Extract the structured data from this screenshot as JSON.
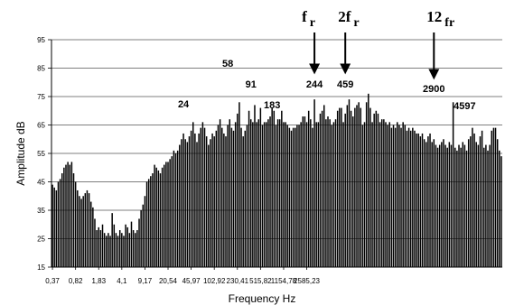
{
  "chart_data": {
    "type": "bar",
    "title": "",
    "xlabel": "Frequency  Hz",
    "ylabel": "Amplitude dB",
    "ylim": [
      15,
      95
    ],
    "y_ticks": [
      "95",
      "85",
      "75",
      "65",
      "55",
      "45",
      "35",
      "25",
      "15"
    ],
    "grid": true,
    "x_tick_labels": [
      {
        "label": "0,37",
        "bar_index": 0
      },
      {
        "label": "0,82",
        "bar_index": 12
      },
      {
        "label": "1,83",
        "bar_index": 24
      },
      {
        "label": "4,1",
        "bar_index": 36
      },
      {
        "label": "9,17",
        "bar_index": 48
      },
      {
        "label": "20,54",
        "bar_index": 60
      },
      {
        "label": "45,97",
        "bar_index": 72
      },
      {
        "label": "102,92",
        "bar_index": 84
      },
      {
        "label": "230,41",
        "bar_index": 96
      },
      {
        "label": "515,82",
        "bar_index": 108
      },
      {
        "label": "1154,78",
        "bar_index": 120
      },
      {
        "label": "2585,23",
        "bar_index": 132
      }
    ],
    "values": [
      44,
      43,
      42,
      45,
      46,
      48,
      50,
      51,
      52,
      51,
      52,
      48,
      45,
      42,
      40,
      39,
      40,
      41,
      42,
      41,
      38,
      36,
      32,
      28,
      29,
      28,
      30,
      27,
      26,
      27,
      26,
      34,
      30,
      27,
      26,
      28,
      27,
      26,
      30,
      29,
      27,
      31,
      28,
      27,
      28,
      32,
      35,
      37,
      40,
      45,
      46,
      47,
      48,
      51,
      50,
      49,
      48,
      50,
      51,
      52,
      52,
      53,
      54,
      56,
      55,
      56,
      58,
      60,
      62,
      60,
      59,
      61,
      63,
      66,
      62,
      59,
      62,
      64,
      66,
      64,
      61,
      58,
      60,
      62,
      61,
      63,
      65,
      67,
      64,
      62,
      61,
      65,
      67,
      64,
      63,
      66,
      69,
      73,
      64,
      61,
      63,
      65,
      70,
      67,
      66,
      72,
      66,
      67,
      71,
      65,
      66,
      66,
      67,
      68,
      71,
      70,
      65,
      67,
      67,
      70,
      66,
      66,
      65,
      64,
      63,
      64,
      64,
      65,
      65,
      66,
      68,
      68,
      66,
      70,
      67,
      64,
      74,
      66,
      66,
      69,
      70,
      72,
      67,
      68,
      67,
      65,
      66,
      67,
      70,
      71,
      71,
      66,
      69,
      72,
      74,
      70,
      68,
      71,
      72,
      73,
      71,
      65,
      66,
      73,
      76,
      71,
      66,
      69,
      70,
      69,
      66,
      67,
      67,
      66,
      65,
      66,
      64,
      65,
      64,
      66,
      65,
      64,
      66,
      65,
      63,
      64,
      63,
      64,
      63,
      62,
      62,
      61,
      62,
      60,
      59,
      61,
      62,
      59,
      60,
      58,
      57,
      58,
      59,
      60,
      58,
      57,
      59,
      58,
      73,
      57,
      56,
      58,
      57,
      59,
      58,
      56,
      60,
      61,
      64,
      62,
      59,
      58,
      61,
      63,
      57,
      58,
      56,
      58,
      63,
      64,
      64,
      60,
      56,
      54
    ],
    "annotations": [
      {
        "text": "24",
        "bar_index": 68
      },
      {
        "text": "58",
        "bar_index": 91
      },
      {
        "text": "91",
        "bar_index": 103
      },
      {
        "text": "183",
        "bar_index": 114
      },
      {
        "text": "244",
        "bar_index": 136
      },
      {
        "text": "459",
        "bar_index": 152
      },
      {
        "text": "2900",
        "bar_index": 198
      },
      {
        "text": "4597",
        "bar_index": 214
      }
    ],
    "markers": [
      {
        "main": "f",
        "sub": "r",
        "arrow_target_bar": 136
      },
      {
        "main": "2f",
        "sub": "r",
        "arrow_target_bar": 152
      },
      {
        "main": "12",
        "sub": "fr",
        "arrow_target_bar": 198
      }
    ]
  }
}
